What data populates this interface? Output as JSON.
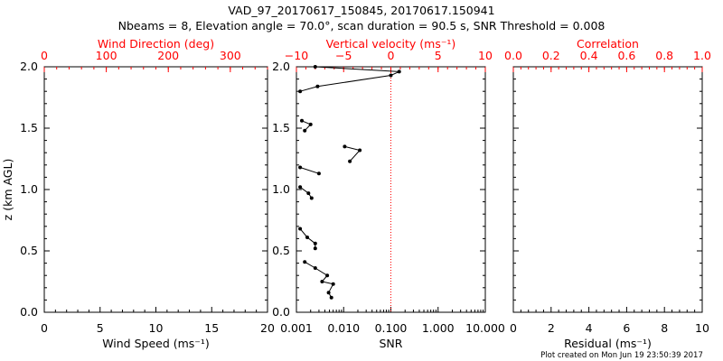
{
  "title_line1": "VAD_97_20170617_150845, 20170617.150941",
  "title_line2": "Nbeams = 8, Elevation angle = 70.0°, scan duration = 90.5 s, SNR Threshold = 0.008",
  "footer": "Plot created on Mon Jun 19 23:50:39 2017",
  "colors": {
    "axis": "#000000",
    "accent": "#ff0000",
    "data": "#000000"
  },
  "chart_data": [
    {
      "type": "line",
      "panel": "wind",
      "xlabel": "Wind Speed (ms⁻¹)",
      "xlim": [
        0,
        20
      ],
      "xticks": [
        "0",
        "5",
        "10",
        "15",
        "20"
      ],
      "top_xlabel": "Wind Direction (deg)",
      "top_xlim": [
        0,
        360
      ],
      "top_xticks": [
        "0",
        "100",
        "200",
        "300"
      ],
      "ylabel": "z (km AGL)",
      "ylim": [
        0,
        2
      ],
      "yticks": [
        "0.0",
        "0.5",
        "1.0",
        "1.5",
        "2.0"
      ],
      "series": []
    },
    {
      "type": "line",
      "panel": "snr",
      "xlabel": "SNR",
      "xscale": "log",
      "xlim": [
        0.001,
        10
      ],
      "xticks": [
        "0.001",
        "0.010",
        "0.100",
        "1.000",
        "10.000"
      ],
      "top_xlabel": "Vertical velocity (ms⁻¹)",
      "top_xlim": [
        -10,
        10
      ],
      "top_xticks": [
        "−10",
        "−5",
        "0",
        "5",
        "10"
      ],
      "ylim": [
        0,
        2
      ],
      "yticks": [
        "0.0",
        "0.5",
        "1.0",
        "1.5",
        "2.0"
      ],
      "reference_line": {
        "x": 0.1,
        "style": "dotted",
        "color": "#ff0000"
      },
      "series": [
        {
          "x": [
            0.0055,
            0.0048,
            0.006,
            0.0035,
            0.0045,
            0.0025,
            0.0015,
            null,
            0.0025,
            0.0025,
            0.0017,
            0.0012,
            null,
            0.0021,
            0.0018,
            0.0012,
            null,
            0.003,
            0.0012,
            null,
            0.0135,
            0.022,
            0.0105,
            null,
            0.0015,
            0.002,
            0.0013,
            null,
            0.0012,
            0.0028,
            0.1,
            0.15,
            0.0025
          ],
          "y": [
            0.12,
            0.16,
            0.23,
            0.25,
            0.3,
            0.36,
            0.41,
            null,
            0.52,
            0.56,
            0.61,
            0.68,
            null,
            0.93,
            0.97,
            1.02,
            null,
            1.13,
            1.18,
            null,
            1.23,
            1.32,
            1.35,
            null,
            1.48,
            1.53,
            1.56,
            null,
            1.8,
            1.84,
            1.93,
            1.96,
            2.0
          ]
        }
      ]
    },
    {
      "type": "line",
      "panel": "residual",
      "xlabel": "Residual (ms⁻¹)",
      "xlim": [
        0,
        10
      ],
      "xticks": [
        "0",
        "2",
        "4",
        "6",
        "8",
        "10"
      ],
      "top_xlabel": "Correlation",
      "top_xlim": [
        0,
        1
      ],
      "top_xticks": [
        "0.0",
        "0.2",
        "0.4",
        "0.6",
        "0.8",
        "1.0"
      ],
      "ylim": [
        0,
        2
      ],
      "series": []
    }
  ]
}
